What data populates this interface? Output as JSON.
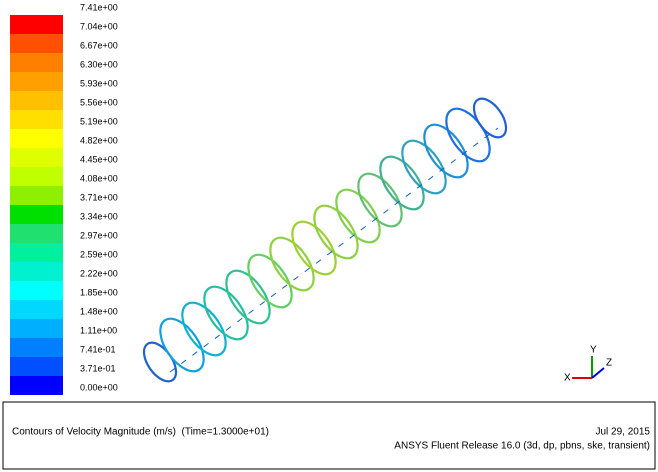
{
  "colorbar": {
    "labels": [
      "7.41e+00",
      "7.04e+00",
      "6.67e+00",
      "6.30e+00",
      "5.93e+00",
      "5.56e+00",
      "5.19e+00",
      "4.82e+00",
      "4.45e+00",
      "4.08e+00",
      "3.71e+00",
      "3.34e+00",
      "2.97e+00",
      "2.59e+00",
      "2.22e+00",
      "1.85e+00",
      "1.48e+00",
      "1.11e+00",
      "7.41e-01",
      "3.71e-01",
      "0.00e+00"
    ],
    "colors": [
      "#ff0000",
      "#ff5000",
      "#ff8000",
      "#ffa000",
      "#ffc000",
      "#ffdf00",
      "#ffff00",
      "#dfff00",
      "#bfff00",
      "#8fef00",
      "#00e000",
      "#20e070",
      "#00f0a0",
      "#00f0d0",
      "#00ffff",
      "#00d8ff",
      "#00b0ff",
      "#0080ff",
      "#0050ff",
      "#0000ff"
    ]
  },
  "footer": {
    "title": "Contours of Velocity Magnitude (m/s)  (Time=1.3000e+01)",
    "date": "Jul 29, 2015",
    "release": "ANSYS Fluent Release 16.0 (3d, dp, pbns, ske, transient)"
  },
  "triad": {
    "x": "X",
    "y": "Y",
    "z": "Z"
  }
}
